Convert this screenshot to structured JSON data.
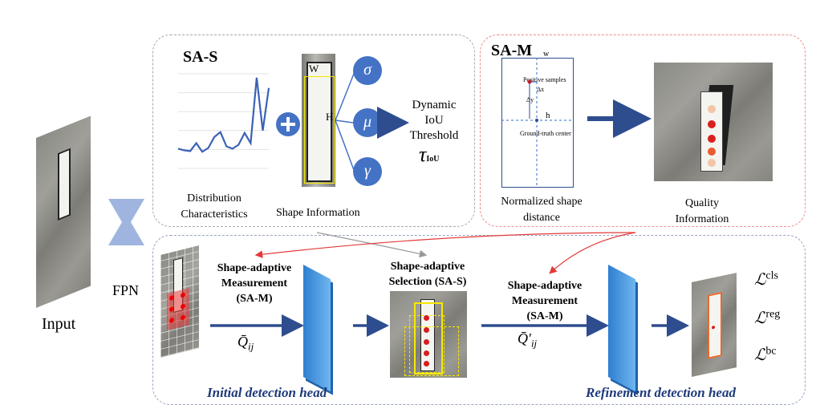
{
  "input": {
    "label": "Input"
  },
  "fpn": {
    "label": "FPN"
  },
  "sa_s_top": {
    "title": "SA-S",
    "dist_caption": [
      "Distribution",
      "Characteristics"
    ],
    "shape_caption": "Shape Information",
    "w_label": "W",
    "h_label": "H",
    "symbols": [
      "σ",
      "μ",
      "γ"
    ],
    "output": [
      "Dynamic",
      "IoU",
      "Threshold"
    ],
    "tau_symbol": "τ",
    "tau_sub": "IoU",
    "plus": "+"
  },
  "sa_m_top": {
    "title": "SA-M",
    "w_label": "w",
    "h_label": "h",
    "positive_label": "Positive samples",
    "dx_label": "Δx",
    "dy_label": "Δy",
    "center_label": "Ground-truth center",
    "norm_caption": [
      "Normalized shape",
      "distance"
    ],
    "quality_caption": [
      "Quality",
      "Information"
    ]
  },
  "bottom": {
    "measure1": [
      "Shape-adaptive",
      "Measurement",
      "(SA-M)"
    ],
    "q1_main": "Q̄",
    "q1_sub": "ij",
    "selection": [
      "Shape-adaptive",
      "Selection (SA-S)"
    ],
    "measure2": [
      "Shape-adaptive",
      "Measurement",
      "(SA-M)"
    ],
    "q2_main": "Q̄′",
    "q2_sub": "ij",
    "initial_head": "Initial detection head",
    "refine_head": "Refinement  detection head",
    "losses": [
      {
        "main": "ℒ",
        "sup": "cls"
      },
      {
        "main": "ℒ",
        "sup": "reg"
      },
      {
        "main": "ℒ",
        "sup": "bc"
      }
    ]
  },
  "colors": {
    "arrow": "#2e4d8f",
    "node": "#4472c4",
    "panel": "#3a8ee0",
    "red": "#e23a3a",
    "sa_s_border": "#a9a9a9",
    "sa_m_border": "#ef8d8d",
    "bottom_border": "#9aa5c4"
  },
  "chart_data": {
    "type": "line",
    "x": [
      1,
      2,
      3,
      4,
      5,
      6,
      7,
      8,
      9,
      10,
      11,
      12,
      13,
      14,
      15,
      16
    ],
    "values": [
      2.5,
      2.3,
      2.2,
      3.2,
      2.1,
      2.6,
      4.0,
      4.6,
      2.8,
      2.5,
      3.0,
      4.5,
      3.2,
      11.5,
      4.8,
      10.2
    ]
  }
}
